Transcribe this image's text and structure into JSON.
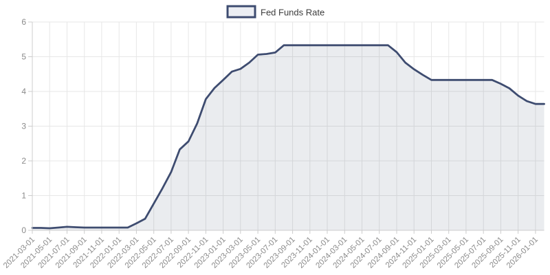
{
  "chart_data": {
    "type": "area",
    "title": "",
    "legend": [
      {
        "label": "Fed Funds Rate"
      }
    ],
    "legend_position": "top-center",
    "grid": true,
    "ylim": [
      0,
      6
    ],
    "y_ticks": [
      0,
      1,
      2,
      3,
      4,
      5,
      6
    ],
    "y_tick_labels": [
      "0",
      "1",
      "2",
      "3",
      "4",
      "5",
      "6"
    ],
    "x_tick_labels": [
      "2021-03-01",
      "2021-05-01",
      "2021-07-01",
      "2021-09-01",
      "2021-11-01",
      "2022-01-01",
      "2022-03-01",
      "2022-05-01",
      "2022-07-01",
      "2022-09-01",
      "2022-11-01",
      "2023-01-01",
      "2023-03-01",
      "2023-05-01",
      "2023-07-01",
      "2023-09-01",
      "2023-11-01",
      "2024-01-01",
      "2024-03-01",
      "2024-05-01",
      "2024-07-01",
      "2024-09-01",
      "2024-11-01",
      "2025-01-01",
      "2025-03-01",
      "2025-05-01",
      "2025-07-01",
      "2025-09-01",
      "2025-11-01",
      "2026-01-01"
    ],
    "x": [
      "2021-03-01",
      "2021-04-01",
      "2021-05-01",
      "2021-06-01",
      "2021-07-01",
      "2021-08-01",
      "2021-09-01",
      "2021-10-01",
      "2021-11-01",
      "2021-12-01",
      "2022-01-01",
      "2022-02-01",
      "2022-03-01",
      "2022-04-01",
      "2022-05-01",
      "2022-06-01",
      "2022-07-01",
      "2022-08-01",
      "2022-09-01",
      "2022-10-01",
      "2022-11-01",
      "2022-12-01",
      "2023-01-01",
      "2023-02-01",
      "2023-03-01",
      "2023-04-01",
      "2023-05-01",
      "2023-06-01",
      "2023-07-01",
      "2023-08-01",
      "2023-09-01",
      "2023-10-01",
      "2023-11-01",
      "2023-12-01",
      "2024-01-01",
      "2024-02-01",
      "2024-03-01",
      "2024-04-01",
      "2024-05-01",
      "2024-06-01",
      "2024-07-01",
      "2024-08-01",
      "2024-09-01",
      "2024-10-01",
      "2024-11-01",
      "2024-12-01",
      "2025-01-01",
      "2025-02-01",
      "2025-03-01",
      "2025-04-01",
      "2025-05-01",
      "2025-06-01",
      "2025-07-01",
      "2025-08-01",
      "2025-09-01",
      "2025-10-01",
      "2025-11-01",
      "2025-12-01",
      "2026-01-01",
      "2026-02-01"
    ],
    "values": [
      0.07,
      0.07,
      0.06,
      0.08,
      0.1,
      0.09,
      0.08,
      0.08,
      0.08,
      0.08,
      0.08,
      0.08,
      0.2,
      0.33,
      0.77,
      1.21,
      1.68,
      2.33,
      2.56,
      3.08,
      3.78,
      4.1,
      4.33,
      4.57,
      4.65,
      4.83,
      5.06,
      5.08,
      5.12,
      5.33,
      5.33,
      5.33,
      5.33,
      5.33,
      5.33,
      5.33,
      5.33,
      5.33,
      5.33,
      5.33,
      5.33,
      5.33,
      5.13,
      4.83,
      4.64,
      4.48,
      4.33,
      4.33,
      4.33,
      4.33,
      4.33,
      4.33,
      4.33,
      4.33,
      4.22,
      4.09,
      3.88,
      3.72,
      3.64,
      3.64
    ],
    "colors": {
      "line": "#3e4c70",
      "area_fill": "rgba(62,78,113,0.11)",
      "swatch_fill": "#eceef3",
      "gridline": "#e7e7e7",
      "axis": "#cccccc",
      "tick_text": "#8a8a8a",
      "legend_text": "#3c3c3c",
      "background": "#ffffff"
    }
  }
}
